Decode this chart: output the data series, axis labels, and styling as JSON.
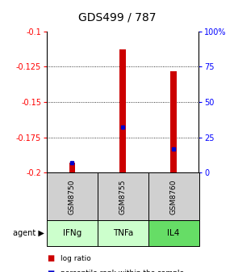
{
  "title": "GDS499 / 787",
  "categories": [
    "GSM8750",
    "GSM8755",
    "GSM8760"
  ],
  "agents": [
    "IFNg",
    "TNFa",
    "IL4"
  ],
  "bar_values": [
    -0.193,
    -0.113,
    -0.128
  ],
  "bar_bottom": -0.2,
  "percentile_values": [
    -0.193,
    -0.168,
    -0.183
  ],
  "percentile_pct": [
    10,
    35,
    20
  ],
  "ylim": [
    -0.2,
    -0.1
  ],
  "yticks_left": [
    -0.2,
    -0.175,
    -0.15,
    -0.125,
    -0.1
  ],
  "yticks_right_pct": [
    0,
    25,
    50,
    75,
    100
  ],
  "bar_color": "#cc0000",
  "percentile_color": "#0000cc",
  "agent_colors": [
    "#ccffcc",
    "#ccffcc",
    "#66dd66"
  ],
  "gsm_bg": "#d0d0d0",
  "grid_color": "#888888",
  "bar_width": 0.12
}
